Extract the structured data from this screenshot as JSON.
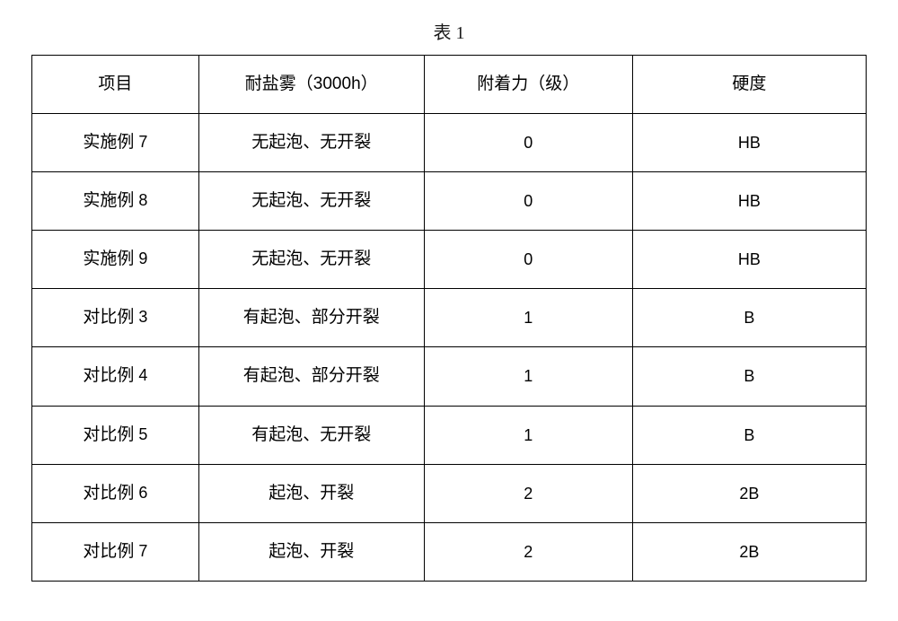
{
  "table": {
    "title": "表 1",
    "columns": [
      {
        "label": "项目",
        "width_pct": 20
      },
      {
        "label_han": "耐盐雾",
        "label_paren": "（3000h）",
        "width_pct": 27
      },
      {
        "label_han": "附着力",
        "label_paren": "（级）",
        "width_pct": 25
      },
      {
        "label": "硬度",
        "width_pct": 28
      }
    ],
    "rows": [
      {
        "item_han": "实施例",
        "item_num": "7",
        "salt_spray": "无起泡、无开裂",
        "adhesion": "0",
        "hardness": "HB"
      },
      {
        "item_han": "实施例",
        "item_num": "8",
        "salt_spray": "无起泡、无开裂",
        "adhesion": "0",
        "hardness": "HB"
      },
      {
        "item_han": "实施例",
        "item_num": "9",
        "salt_spray": "无起泡、无开裂",
        "adhesion": "0",
        "hardness": "HB"
      },
      {
        "item_han": "对比例",
        "item_num": "3",
        "salt_spray": "有起泡、部分开裂",
        "adhesion": "1",
        "hardness": "B"
      },
      {
        "item_han": "对比例",
        "item_num": "4",
        "salt_spray": "有起泡、部分开裂",
        "adhesion": "1",
        "hardness": "B"
      },
      {
        "item_han": "对比例",
        "item_num": "5",
        "salt_spray": "有起泡、无开裂",
        "adhesion": "1",
        "hardness": "B"
      },
      {
        "item_han": "对比例",
        "item_num": "6",
        "salt_spray": "起泡、开裂",
        "adhesion": "2",
        "hardness": "2B"
      },
      {
        "item_han": "对比例",
        "item_num": "7",
        "salt_spray": "起泡、开裂",
        "adhesion": "2",
        "hardness": "2B"
      }
    ],
    "border_color": "#000000",
    "background_color": "#ffffff",
    "text_color": "#000000",
    "title_fontsize": 20,
    "cell_fontsize": 19,
    "num_fontsize": 18
  }
}
